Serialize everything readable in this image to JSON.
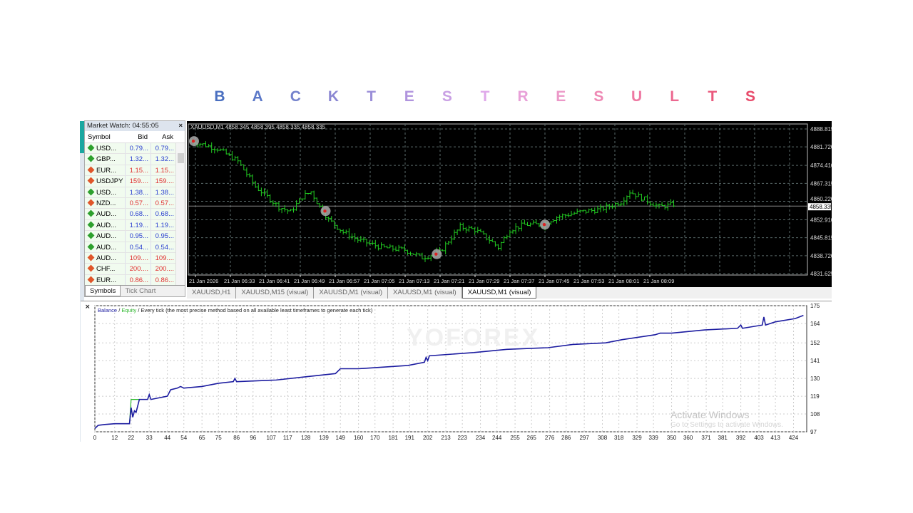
{
  "title": {
    "letters": [
      "B",
      "A",
      "C",
      "K",
      "T",
      "E",
      "S",
      "T",
      "R",
      "E",
      "S",
      "U",
      "L",
      "T",
      "S"
    ],
    "colors": [
      "#4a6fc0",
      "#5b78c8",
      "#7482cc",
      "#8a86d2",
      "#9a8ed8",
      "#b094de",
      "#c9a0e4",
      "#dfa8ea",
      "#e8a0d8",
      "#ec98c8",
      "#ee88b4",
      "#ee78a2",
      "#ec6890",
      "#ea587c",
      "#e84a6a"
    ]
  },
  "market_watch": {
    "title": "Market Watch: 04:55:05",
    "close": "×",
    "columns": [
      "Symbol",
      "Bid",
      "Ask"
    ],
    "rows": [
      {
        "symbol": "USD...",
        "bid": "0.79...",
        "ask": "0.79...",
        "dir": "up"
      },
      {
        "symbol": "GBP...",
        "bid": "1.32...",
        "ask": "1.32...",
        "dir": "up"
      },
      {
        "symbol": "EUR...",
        "bid": "1.15...",
        "ask": "1.15...",
        "dir": "down"
      },
      {
        "symbol": "USDJPY",
        "bid": "159....",
        "ask": "159....",
        "dir": "down"
      },
      {
        "symbol": "USD...",
        "bid": "1.38...",
        "ask": "1.38...",
        "dir": "up"
      },
      {
        "symbol": "NZD...",
        "bid": "0.57...",
        "ask": "0.57...",
        "dir": "down"
      },
      {
        "symbol": "AUD...",
        "bid": "0.68...",
        "ask": "0.68...",
        "dir": "up"
      },
      {
        "symbol": "AUD...",
        "bid": "1.19...",
        "ask": "1.19...",
        "dir": "up"
      },
      {
        "symbol": "AUD...",
        "bid": "0.95...",
        "ask": "0.95...",
        "dir": "up"
      },
      {
        "symbol": "AUD...",
        "bid": "0.54...",
        "ask": "0.54...",
        "dir": "up"
      },
      {
        "symbol": "AUD...",
        "bid": "109....",
        "ask": "109....",
        "dir": "down"
      },
      {
        "symbol": "CHF...",
        "bid": "200....",
        "ask": "200....",
        "dir": "down"
      },
      {
        "symbol": "EUR...",
        "bid": "0.86...",
        "ask": "0.86...",
        "dir": "down"
      }
    ],
    "tabs": [
      "Symbols",
      "Tick Chart"
    ],
    "colors": {
      "up": "#2ea02e",
      "down": "#e0562a",
      "up_text": "#2a3fd0",
      "down_text": "#e03030"
    }
  },
  "price_chart": {
    "header": "XAUUSD,M1  4858.345 4858.395 4858.335 4858.335",
    "price_ticks": [
      "4888.815",
      "4881.720",
      "4874.410",
      "4867.315",
      "4860.220",
      "4852.910",
      "4845.815",
      "4838.720",
      "4831.625"
    ],
    "current_price": "4858.335",
    "time_ticks": [
      "21 Jan 2026",
      "21 Jan 06:33",
      "21 Jan 06:41",
      "21 Jan 06:49",
      "21 Jan 06:57",
      "21 Jan 07:05",
      "21 Jan 07:13",
      "21 Jan 07:21",
      "21 Jan 07:29",
      "21 Jan 07:37",
      "21 Jan 07:45",
      "21 Jan 07:53",
      "21 Jan 08:01",
      "21 Jan 08:09"
    ],
    "price_path": [
      [
        0,
        4884
      ],
      [
        9,
        4881
      ],
      [
        16,
        4876
      ],
      [
        22,
        4866
      ],
      [
        27,
        4861
      ],
      [
        30,
        4858
      ],
      [
        34,
        4856
      ],
      [
        38,
        4862
      ],
      [
        41,
        4864
      ],
      [
        44,
        4858
      ],
      [
        47,
        4853
      ],
      [
        52,
        4848
      ],
      [
        57,
        4845
      ],
      [
        65,
        4842
      ],
      [
        73,
        4841
      ],
      [
        79,
        4838
      ],
      [
        85,
        4840
      ],
      [
        89,
        4846
      ],
      [
        92,
        4850
      ],
      [
        97,
        4849
      ],
      [
        102,
        4845
      ],
      [
        105,
        4842
      ],
      [
        109,
        4849
      ],
      [
        114,
        4851
      ],
      [
        120,
        4851
      ],
      [
        125,
        4854
      ],
      [
        133,
        4856
      ],
      [
        140,
        4857
      ],
      [
        147,
        4860
      ],
      [
        150,
        4864
      ],
      [
        155,
        4861
      ],
      [
        160,
        4858
      ],
      [
        165,
        4859
      ]
    ],
    "trade_markers": [
      0,
      45,
      83,
      120
    ],
    "colors": {
      "candle": "#22cc22",
      "background": "#000000",
      "grid": "#5a6a6a"
    }
  },
  "chart_tabs": [
    "XAUUSD,H1",
    "XAUUSD,M15 (visual)",
    "XAUUSD,M1 (visual)",
    "XAUUSD,M1 (visual)",
    "XAUUSD,M1 (visual)"
  ],
  "chart_tabs_active": 4,
  "chart_data": {
    "type": "line",
    "legend": {
      "balance": "Balance",
      "sep": " / ",
      "equity": "Equity",
      "desc": " / Every tick (the most precise method based on all available least timeframes to generate each tick)"
    },
    "xlim": [
      0,
      432
    ],
    "ylim": [
      97,
      175
    ],
    "x_ticks": [
      0,
      12,
      22,
      33,
      44,
      54,
      65,
      75,
      86,
      96,
      107,
      117,
      128,
      139,
      149,
      160,
      170,
      181,
      191,
      202,
      213,
      223,
      234,
      244,
      255,
      265,
      276,
      286,
      297,
      308,
      318,
      329,
      339,
      350,
      360,
      371,
      381,
      392,
      403,
      413,
      424
    ],
    "y_ticks": [
      97,
      108,
      119,
      130,
      141,
      152,
      164,
      175
    ],
    "series": [
      {
        "name": "Balance",
        "color": "#1c1ca0",
        "points": [
          [
            0,
            99
          ],
          [
            2,
            101
          ],
          [
            6,
            101.5
          ],
          [
            12,
            102
          ],
          [
            21,
            102
          ],
          [
            22,
            112
          ],
          [
            23,
            106
          ],
          [
            24,
            110
          ],
          [
            25,
            109
          ],
          [
            27,
            117
          ],
          [
            32,
            117
          ],
          [
            33,
            120
          ],
          [
            34,
            117
          ],
          [
            44,
            119
          ],
          [
            46,
            123
          ],
          [
            50,
            124
          ],
          [
            52,
            125
          ],
          [
            54,
            124
          ],
          [
            65,
            125
          ],
          [
            75,
            127
          ],
          [
            84,
            128
          ],
          [
            85,
            130
          ],
          [
            86,
            128
          ],
          [
            110,
            129
          ],
          [
            128,
            131
          ],
          [
            146,
            133
          ],
          [
            149,
            136
          ],
          [
            160,
            136
          ],
          [
            190,
            138
          ],
          [
            200,
            140
          ],
          [
            201,
            143
          ],
          [
            202,
            141
          ],
          [
            203,
            144
          ],
          [
            230,
            146
          ],
          [
            250,
            148
          ],
          [
            275,
            149
          ],
          [
            290,
            151
          ],
          [
            310,
            152
          ],
          [
            320,
            154
          ],
          [
            340,
            157
          ],
          [
            343,
            158
          ],
          [
            346,
            158
          ],
          [
            350,
            158
          ],
          [
            370,
            160
          ],
          [
            390,
            161
          ],
          [
            392,
            163
          ],
          [
            393,
            161
          ],
          [
            405,
            163
          ],
          [
            406,
            168
          ],
          [
            407,
            163
          ],
          [
            413,
            165
          ],
          [
            425,
            167
          ],
          [
            430,
            169
          ]
        ]
      },
      {
        "name": "Equity",
        "color": "#2eb82e",
        "points": [
          [
            21,
            102
          ],
          [
            22,
            117
          ],
          [
            27,
            117
          ]
        ]
      }
    ],
    "grid": true
  },
  "watermarks": {
    "brand": "YOFOREX",
    "activate": "Activate Windows",
    "activate_sub": "Go to Settings to activate Windows."
  }
}
